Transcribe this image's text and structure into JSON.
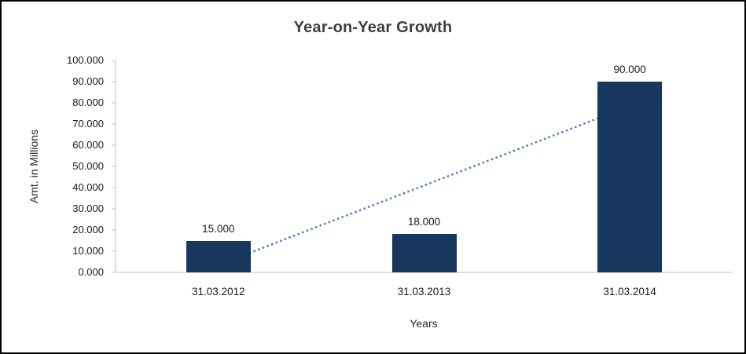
{
  "frame": {
    "background": "#FFFFFF",
    "border_color": "#000000"
  },
  "chart_data": {
    "type": "bar",
    "title": "Year-on-Year Growth",
    "xlabel": "Years",
    "ylabel": "Amt. in Millions",
    "categories": [
      "31.03.2012",
      "31.03.2013",
      "31.03.2014"
    ],
    "values": [
      15,
      18,
      90
    ],
    "data_labels": [
      "15.000",
      "18.000",
      "90.000"
    ],
    "ylim": [
      0,
      100
    ],
    "ytick_step": 10,
    "ytick_labels": [
      "0.000",
      "10.000",
      "20.000",
      "30.000",
      "40.000",
      "50.000",
      "60.000",
      "70.000",
      "80.000",
      "90.000",
      "100.000"
    ],
    "grid": false,
    "legend": "none",
    "bar_color": "#17375E",
    "axis_color": "#BFBFBF",
    "trendline": {
      "type": "linear",
      "style": "dotted",
      "color": "#4A7EBB"
    }
  }
}
